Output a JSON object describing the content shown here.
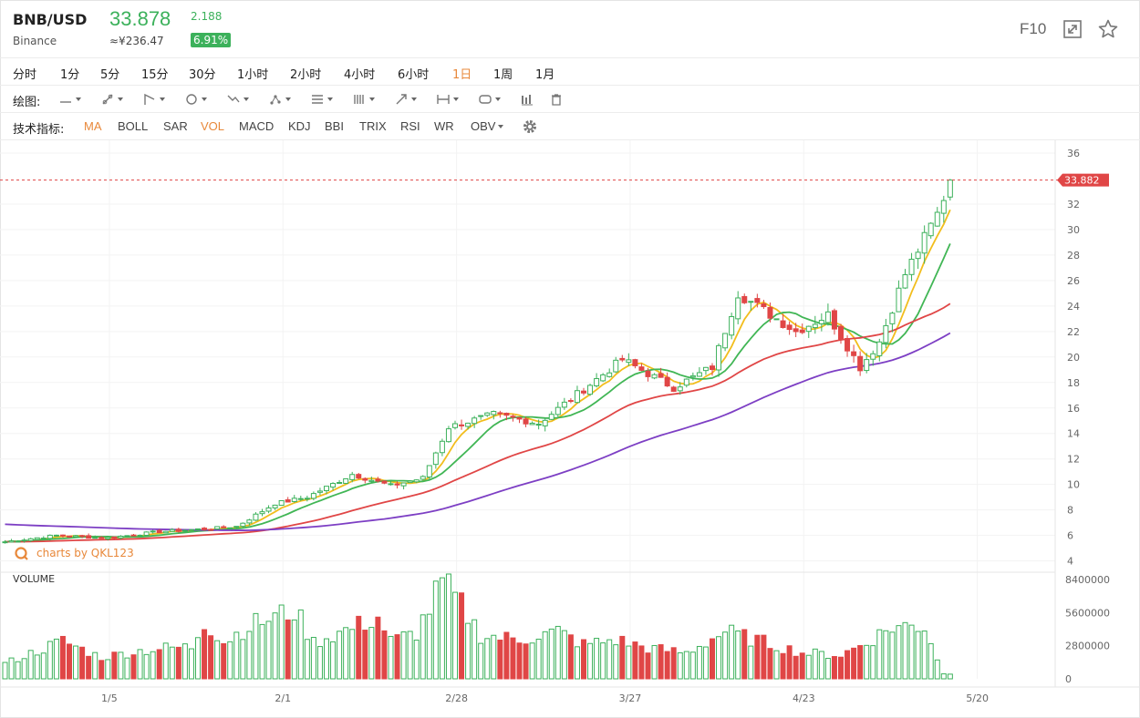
{
  "header": {
    "symbol": "BNB/USD",
    "exchange": "Binance",
    "price": "33.878",
    "price_cny": "≈¥236.47",
    "change": "2.188",
    "change_pct": "6.91%",
    "f10_label": "F10",
    "icons": [
      "expand-icon",
      "star-icon"
    ]
  },
  "timeframes": {
    "items": [
      "分时",
      "1分",
      "5分",
      "15分",
      "30分",
      "1小时",
      "2小时",
      "4小时",
      "6小时",
      "1日",
      "1周",
      "1月"
    ],
    "active": "1日"
  },
  "drawing": {
    "label": "绘图:",
    "tools": [
      "line-tool-icon",
      "ray-tool-icon",
      "channel-tool-icon",
      "shape-tool-icon",
      "zigzag-tool-icon",
      "pattern-tool-icon",
      "fib-tool-icon",
      "gann-tool-icon",
      "arrow-tool-icon",
      "measure-tool-icon",
      "annotation-tool-icon",
      "bar-pattern-icon",
      "trash-icon"
    ]
  },
  "indicators": {
    "label": "技术指标:",
    "items": [
      "MA",
      "BOLL",
      "SAR",
      "VOL",
      "MACD",
      "KDJ",
      "BBI",
      "TRIX",
      "RSI",
      "WR",
      "OBV"
    ],
    "active": [
      "MA",
      "VOL"
    ],
    "settings_icon": "gear-icon"
  },
  "chart_data": {
    "type": "candlestick",
    "watermark": "charts by QKL123",
    "last_price_label": "33.882",
    "last_price": 33.882,
    "y_axis": {
      "ticks": [
        4,
        6,
        8,
        10,
        12,
        14,
        16,
        18,
        20,
        22,
        24,
        26,
        28,
        30,
        32,
        34,
        36
      ],
      "ylim": [
        3.4,
        37
      ]
    },
    "x_labels": [
      {
        "label": "1/5",
        "index": 8
      },
      {
        "label": "2/1",
        "index": 35
      },
      {
        "label": "2/28",
        "index": 62
      },
      {
        "label": "3/27",
        "index": 89
      },
      {
        "label": "4/23",
        "index": 116
      },
      {
        "label": "5/20",
        "index": 143
      }
    ],
    "candle_count": 148,
    "close_anchors": [
      [
        0,
        5.5
      ],
      [
        8,
        6.0
      ],
      [
        16,
        5.8
      ],
      [
        24,
        6.3
      ],
      [
        31,
        6.5
      ],
      [
        36,
        6.7
      ],
      [
        42,
        8.5
      ],
      [
        47,
        9.0
      ],
      [
        54,
        10.8
      ],
      [
        60,
        9.9
      ],
      [
        65,
        10.5
      ],
      [
        69,
        14.5
      ],
      [
        76,
        15.5
      ],
      [
        83,
        14.8
      ],
      [
        88,
        16.7
      ],
      [
        96,
        19.8
      ],
      [
        104,
        17.6
      ],
      [
        110,
        19.2
      ],
      [
        114,
        25.0
      ],
      [
        117,
        24.0
      ],
      [
        123,
        22.0
      ],
      [
        128,
        23.3
      ],
      [
        133,
        19.2
      ],
      [
        136,
        21.2
      ],
      [
        140,
        26.5
      ],
      [
        145,
        31.2
      ],
      [
        147,
        33.88
      ]
    ],
    "ma_periods": [
      5,
      10,
      30,
      60
    ],
    "ma_colors": [
      "#f2bd1c",
      "#41b655",
      "#e04646",
      "#7d3fc4"
    ],
    "ma_initial": {
      "ma30": 5.5,
      "ma60": 6.9
    },
    "volume": {
      "label": "VOLUME",
      "ticks": [
        "8400000",
        "5600000",
        "2800000",
        "0"
      ],
      "ymax": 8400000,
      "anchors": [
        [
          0,
          1.3
        ],
        [
          9,
          3.2
        ],
        [
          15,
          1.8
        ],
        [
          20,
          2.3
        ],
        [
          25,
          2.6
        ],
        [
          29,
          2.7
        ],
        [
          31,
          4.9
        ],
        [
          34,
          3.1
        ],
        [
          38,
          4.5
        ],
        [
          45,
          5.8
        ],
        [
          48,
          3.1
        ],
        [
          54,
          4.3
        ],
        [
          58,
          5.2
        ],
        [
          60,
          3.2
        ],
        [
          64,
          3.9
        ],
        [
          68,
          8.1
        ],
        [
          71,
          6.2
        ],
        [
          74,
          3.7
        ],
        [
          80,
          3.3
        ],
        [
          86,
          4.0
        ],
        [
          90,
          2.9
        ],
        [
          95,
          3.3
        ],
        [
          100,
          2.6
        ],
        [
          106,
          2.2
        ],
        [
          112,
          4.0
        ],
        [
          118,
          3.1
        ],
        [
          124,
          2.2
        ],
        [
          130,
          2.0
        ],
        [
          134,
          3.1
        ],
        [
          138,
          4.4
        ],
        [
          143,
          4.5
        ],
        [
          146,
          0.4
        ]
      ]
    },
    "up_color": "#3cb15b",
    "down_color": "#e04646"
  }
}
